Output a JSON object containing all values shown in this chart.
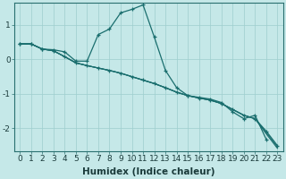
{
  "xlabel": "Humidex (Indice chaleur)",
  "xlim": [
    -0.5,
    23.5
  ],
  "ylim": [
    -2.65,
    1.65
  ],
  "bg_color": "#c5e8e8",
  "plot_bg_color": "#c5e8e8",
  "grid_color": "#9ecece",
  "line_color": "#1a6e6e",
  "xticks": [
    0,
    1,
    2,
    3,
    4,
    5,
    6,
    7,
    8,
    9,
    10,
    11,
    12,
    13,
    14,
    15,
    16,
    17,
    18,
    19,
    20,
    21,
    22,
    23
  ],
  "yticks": [
    -2,
    -1,
    0,
    1
  ],
  "xlabel_fontsize": 7.5,
  "tick_fontsize": 6.5,
  "line1_x": [
    0,
    1,
    2,
    3,
    4,
    5,
    6,
    7,
    8,
    9,
    10,
    11,
    12,
    13,
    14,
    15,
    16,
    17,
    18,
    19,
    20,
    21,
    22
  ],
  "line1_y": [
    0.45,
    0.45,
    0.3,
    0.28,
    0.22,
    -0.05,
    -0.05,
    0.72,
    0.88,
    1.35,
    1.45,
    1.58,
    0.65,
    -0.32,
    -0.82,
    -1.05,
    -1.1,
    -1.15,
    -1.25,
    -1.52,
    -1.72,
    -1.62,
    -2.32
  ],
  "line2_x": [
    0,
    1,
    2,
    3,
    4,
    5,
    6,
    7,
    8,
    9,
    10,
    11,
    12,
    13,
    14,
    15,
    16,
    17,
    18,
    19,
    20,
    21,
    22,
    23
  ],
  "line2_y": [
    0.45,
    0.45,
    0.3,
    0.25,
    0.08,
    -0.1,
    -0.18,
    -0.25,
    -0.32,
    -0.4,
    -0.5,
    -0.6,
    -0.7,
    -0.82,
    -0.95,
    -1.05,
    -1.12,
    -1.18,
    -1.28,
    -1.45,
    -1.62,
    -1.72,
    -2.08,
    -2.5
  ],
  "line3_x": [
    0,
    1,
    2,
    3,
    4,
    5,
    6,
    7,
    8,
    9,
    10,
    11,
    12,
    13,
    14,
    15,
    16,
    17,
    18,
    19,
    20,
    21,
    22,
    23
  ],
  "line3_y": [
    0.45,
    0.45,
    0.3,
    0.25,
    0.08,
    -0.1,
    -0.18,
    -0.25,
    -0.32,
    -0.4,
    -0.5,
    -0.6,
    -0.7,
    -0.82,
    -0.95,
    -1.05,
    -1.12,
    -1.18,
    -1.28,
    -1.45,
    -1.62,
    -1.72,
    -2.12,
    -2.54
  ],
  "line4_x": [
    0,
    1,
    2,
    3,
    4,
    5,
    6,
    7,
    8,
    9,
    10,
    11,
    12,
    13,
    14,
    15,
    16,
    17,
    18,
    19,
    20,
    21,
    22,
    23
  ],
  "line4_y": [
    0.45,
    0.45,
    0.3,
    0.25,
    0.08,
    -0.1,
    -0.18,
    -0.25,
    -0.32,
    -0.4,
    -0.5,
    -0.6,
    -0.7,
    -0.82,
    -0.95,
    -1.05,
    -1.12,
    -1.18,
    -1.28,
    -1.45,
    -1.62,
    -1.72,
    -2.16,
    -2.58
  ]
}
